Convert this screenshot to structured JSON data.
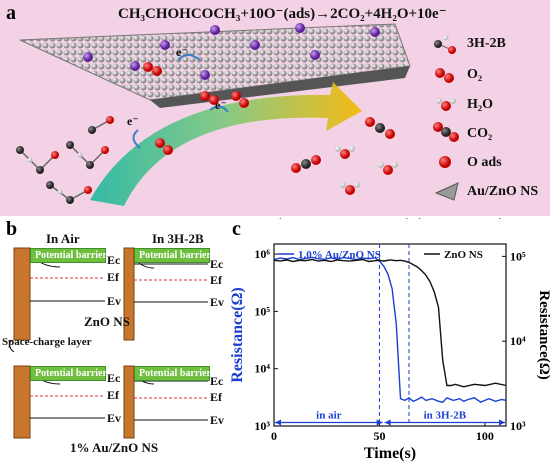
{
  "panel_a": {
    "label": "a",
    "equation": "CH₃CHOHCOCH₃+10O⁻(ads)→2CO₂+4H₂O+10e⁻",
    "electron": "e⁻",
    "legend": [
      {
        "name": "3H-2B",
        "icon": "molecule-icon"
      },
      {
        "name": "O₂",
        "icon": "oxygen-molecule-icon"
      },
      {
        "name": "H₂O",
        "icon": "water-molecule-icon"
      },
      {
        "name": "CO₂",
        "icon": "co2-molecule-icon"
      },
      {
        "name": "O ads",
        "icon": "adsorbed-oxygen-icon"
      },
      {
        "name": "Au/ZnO NS",
        "icon": "nanosheet-icon"
      }
    ]
  },
  "panel_b": {
    "label": "b",
    "in_air": "In Air",
    "in_3h2b": "In 3H-2B",
    "potential_barrier": "Potential barrier",
    "ec": "Ec",
    "ef": "Ef",
    "ev": "Ev",
    "zno_ns": "ZnO NS",
    "space_charge_layer": "Space-charge layer",
    "au_zno_ns": "1% Au/ZnO NS"
  },
  "panel_c": {
    "label": "c",
    "chart_data": {
      "type": "line",
      "xlabel": "Time(s)",
      "ylabel_left": "Resistance(Ω)",
      "ylabel_right": "Resistance(Ω)",
      "xlim": [
        0,
        110
      ],
      "xticks": [
        0,
        50,
        100
      ],
      "ylim_left": [
        1000,
        1500000
      ],
      "yscale_left": "log",
      "yticks_left": [
        "10³",
        "10⁴",
        "10⁵",
        "10⁶"
      ],
      "ylim_right": [
        1000,
        140000
      ],
      "yscale_right": "log",
      "yticks_right": [
        "10³",
        "10⁴",
        "10⁵"
      ],
      "legend_position": "top",
      "annotations": [
        {
          "text": "in air",
          "x_range": [
            0,
            66
          ],
          "y": 300000,
          "axis": "right"
        },
        {
          "text": "in 3H-2B",
          "x_range": [
            66,
            110
          ],
          "y": 300000,
          "axis": "right"
        },
        {
          "text": "in air",
          "x_range": [
            0,
            52
          ],
          "y": 1150,
          "axis": "left"
        },
        {
          "text": "in 3H-2B",
          "x_range": [
            52,
            110
          ],
          "y": 1150,
          "axis": "left"
        }
      ],
      "vlines": [
        50,
        64
      ],
      "series": [
        {
          "name": "1.0% Au/ZnO NS",
          "axis": "left",
          "color": "#1a3fd1",
          "x": [
            0,
            3,
            6,
            9,
            12,
            15,
            18,
            21,
            24,
            27,
            30,
            33,
            36,
            39,
            42,
            45,
            48,
            50,
            52,
            54,
            56,
            58,
            60,
            62,
            64,
            66,
            68,
            70,
            72,
            75,
            78,
            80,
            82,
            85,
            88,
            90,
            92,
            95,
            98,
            100,
            102,
            105,
            108,
            110
          ],
          "y": [
            800000,
            850000,
            820000,
            870000,
            800000,
            840000,
            880000,
            830000,
            810000,
            860000,
            820000,
            870000,
            840000,
            800000,
            850000,
            830000,
            860000,
            750000,
            620000,
            450000,
            250000,
            60000,
            3000,
            2800,
            3100,
            2700,
            2900,
            3200,
            2800,
            3000,
            2700,
            2600,
            3100,
            2800,
            3000,
            2700,
            2900,
            3100,
            2600,
            2800,
            3000,
            2700,
            2900,
            2800
          ]
        },
        {
          "name": "ZnO NS",
          "axis": "right",
          "color": "#111111",
          "x": [
            0,
            3,
            6,
            9,
            12,
            15,
            18,
            21,
            24,
            27,
            30,
            33,
            36,
            39,
            42,
            45,
            48,
            50,
            52,
            55,
            58,
            60,
            62,
            64,
            66,
            68,
            70,
            72,
            74,
            76,
            78,
            80,
            82,
            84,
            86,
            90,
            95,
            100,
            105,
            110
          ],
          "y": [
            90000,
            88000,
            91000,
            87000,
            90000,
            89000,
            92000,
            88000,
            90000,
            87000,
            91000,
            89000,
            88000,
            90000,
            92000,
            87000,
            89000,
            90000,
            88000,
            91000,
            89000,
            90000,
            88000,
            85000,
            80000,
            75000,
            68000,
            60000,
            50000,
            38000,
            25000,
            6000,
            3000,
            3000,
            3100,
            2900,
            3100,
            3000,
            3200,
            3000
          ]
        }
      ]
    }
  }
}
